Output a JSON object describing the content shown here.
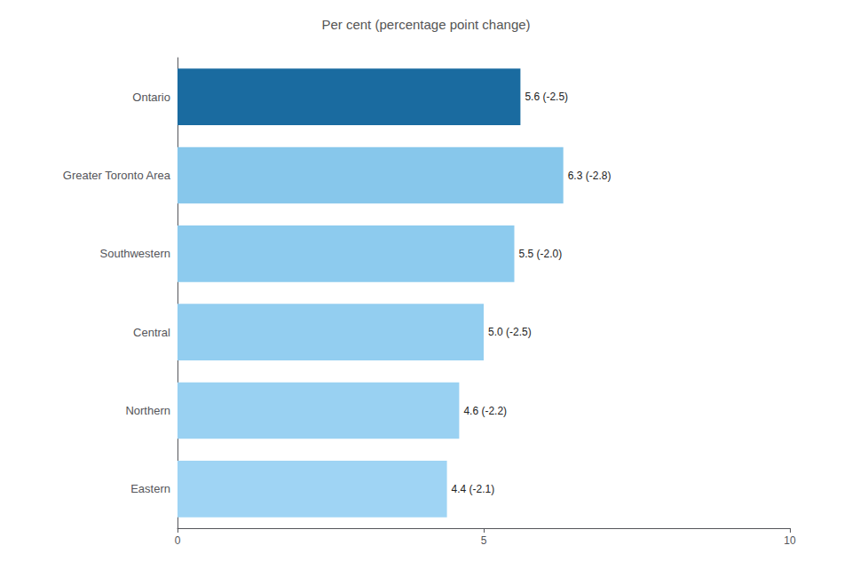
{
  "chart_data": {
    "type": "bar",
    "orientation": "horizontal",
    "title": "Per cent (percentage point change)",
    "categories": [
      "Ontario",
      "Greater Toronto Area",
      "Southwestern",
      "Central",
      "Northern",
      "Eastern"
    ],
    "values": [
      5.6,
      6.3,
      5.5,
      5.0,
      4.6,
      4.4
    ],
    "value_labels": [
      "5.6 (-2.5)",
      "6.3 (-2.8)",
      "5.5 (-2.0)",
      "5.0 (-2.5)",
      "4.6 (-2.2)",
      "4.4 (-2.1)"
    ],
    "colors": [
      "#1a6ba0",
      "#87c7eb",
      "#8dcbee",
      "#93cef0",
      "#99d1f2",
      "#9fd4f4"
    ],
    "xlim": [
      0,
      10
    ],
    "xticks": [
      0,
      5,
      10
    ],
    "grid": false,
    "data_labels": true
  }
}
